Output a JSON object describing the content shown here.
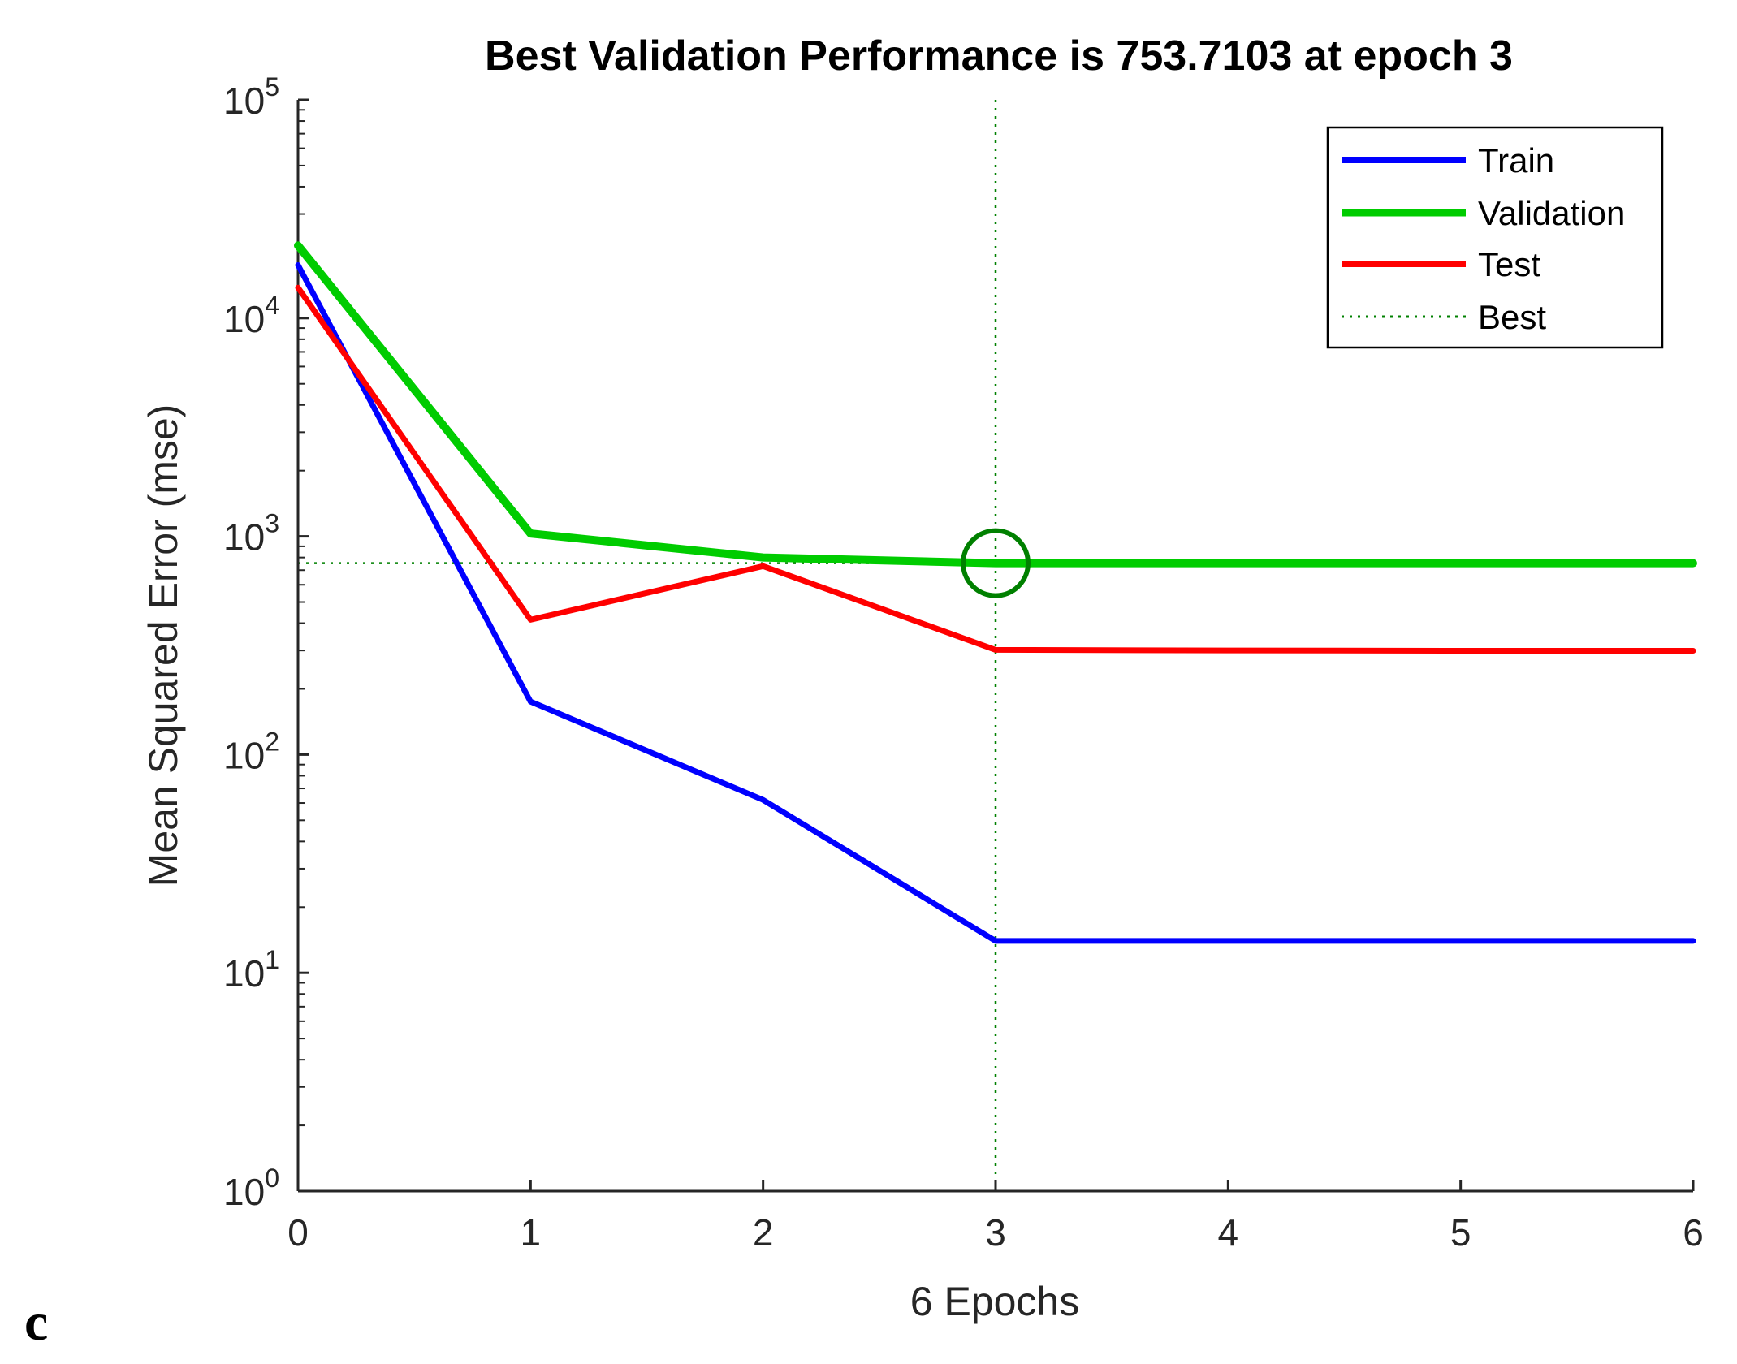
{
  "chart_data": {
    "type": "line",
    "title": "Best Validation Performance is 753.7103 at epoch 3",
    "xlabel": "6 Epochs",
    "ylabel": "Mean Squared Error  (mse)",
    "yscale": "log",
    "xlim": [
      0,
      6
    ],
    "ylim": [
      1,
      100000
    ],
    "x_ticks": [
      0,
      1,
      2,
      3,
      4,
      5,
      6
    ],
    "x_tick_labels": [
      "0",
      "1",
      "2",
      "3",
      "4",
      "5",
      "6"
    ],
    "y_ticks": [
      {
        "value": 1,
        "base": "10",
        "exp": "0"
      },
      {
        "value": 10,
        "base": "10",
        "exp": "1"
      },
      {
        "value": 100,
        "base": "10",
        "exp": "2"
      },
      {
        "value": 1000,
        "base": "10",
        "exp": "3"
      },
      {
        "value": 10000,
        "base": "10",
        "exp": "4"
      },
      {
        "value": 100000,
        "base": "10",
        "exp": "5"
      }
    ],
    "x": [
      0,
      1,
      2,
      3,
      4,
      5,
      6
    ],
    "series": [
      {
        "name": "Train",
        "color": "#0000ff",
        "values": [
          17500,
          175,
          62,
          14,
          14,
          14,
          14
        ]
      },
      {
        "name": "Validation",
        "color": "#00cc00",
        "values": [
          21500,
          1030,
          800,
          753.7103,
          753.7,
          753.7,
          753.7
        ]
      },
      {
        "name": "Test",
        "color": "#ff0000",
        "values": [
          13800,
          415,
          730,
          302,
          300,
          299,
          299
        ]
      }
    ],
    "best": {
      "name": "Best",
      "epoch": 3,
      "value": 753.7103,
      "color": "#008000"
    },
    "legend": {
      "placement": "top-right",
      "entries": [
        "Train",
        "Validation",
        "Test",
        "Best"
      ]
    }
  },
  "panel_label": "c"
}
